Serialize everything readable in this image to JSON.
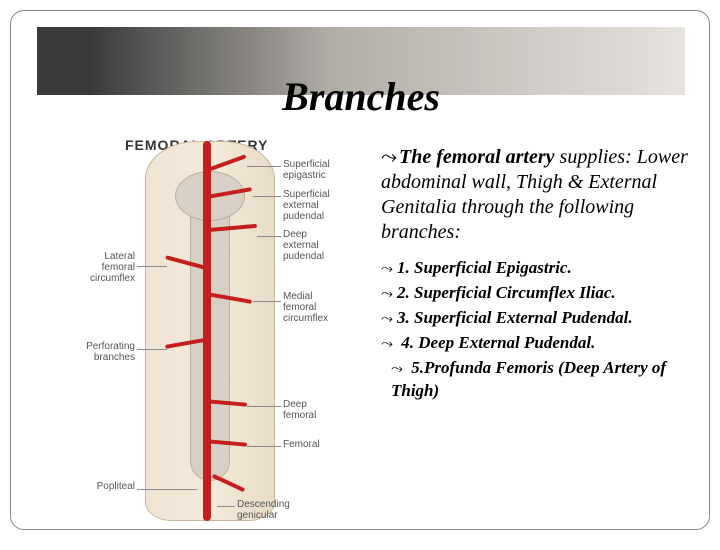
{
  "title": "Branches",
  "colors": {
    "artery": "#c41e1e",
    "bone": "#d8d0c4",
    "skin": "#f5ead9",
    "header_dark": "#3a3a3a",
    "header_light": "#e6e3de",
    "text": "#000000",
    "label": "#555555"
  },
  "diagram": {
    "heading": "FEMORAL ARTERY",
    "labels": {
      "sup_epigastric": "Superficial\nepigastric",
      "sup_ext_pudendal": "Superficial\nexternal\npudendal",
      "deep_ext_pudendal": "Deep\nexternal\npudendal",
      "lat_fem_circumflex": "Lateral\nfemoral\ncircumflex",
      "med_fem_circumflex": "Medial\nfemoral\ncircumflex",
      "perforating": "Perforating\nbranches",
      "deep_femoral": "Deep\nfemoral",
      "femoral": "Femoral",
      "popliteal": "Popliteal",
      "desc_genicular": "Descending\ngenicular"
    }
  },
  "intro": {
    "bullet": "⤳",
    "lead": "The femoral artery",
    "rest": " supplies: Lower abdominal wall, Thigh & External Genitalia through the following branches:"
  },
  "branches": [
    {
      "bullet": "⤳",
      "text": "1. Superficial Epigastric."
    },
    {
      "bullet": "⤳",
      "text": "2. Superficial Circumflex Iliac."
    },
    {
      "bullet": "⤳",
      "text": "3. Superficial External Pudendal."
    },
    {
      "bullet": "⤳",
      "text": " 4. Deep External Pudendal."
    },
    {
      "bullet": "⤳",
      "text": " 5.Profunda Femoris (Deep Artery of Thigh)"
    }
  ]
}
